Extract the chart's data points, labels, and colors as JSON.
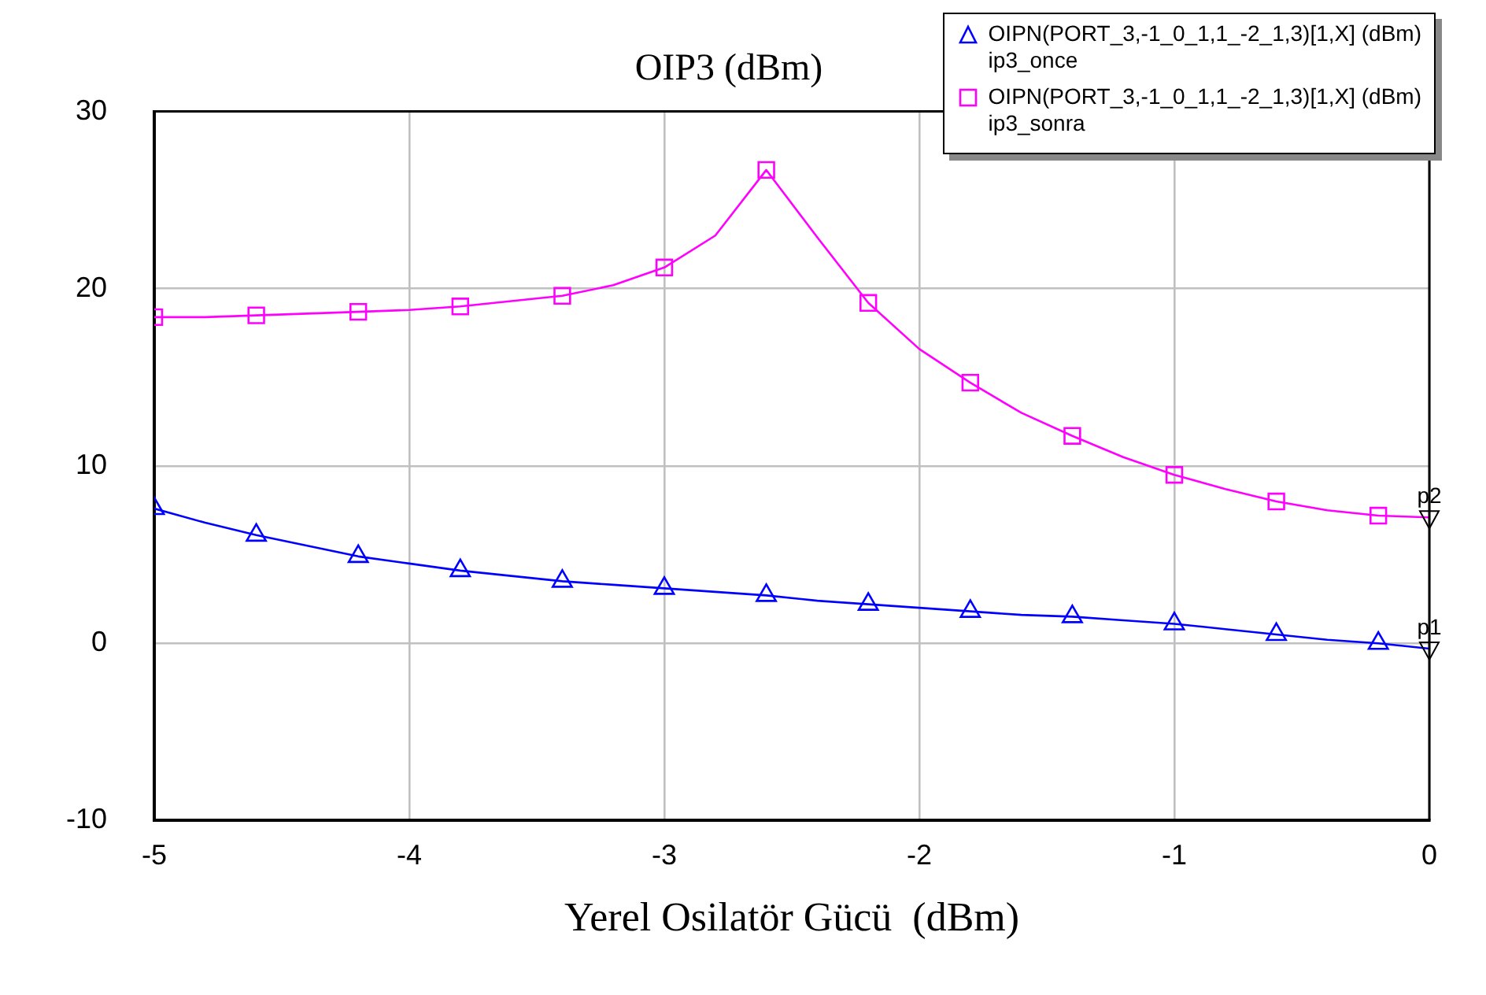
{
  "chart_data": {
    "type": "line",
    "title": "OIP3 (dBm)",
    "xlabel": "Yerel Osilatör Gücü  (dBm)",
    "x": [
      -5,
      -4.8,
      -4.6,
      -4.4,
      -4.2,
      -4,
      -3.8,
      -3.6,
      -3.4,
      -3.2,
      -3,
      -2.8,
      -2.6,
      -2.4,
      -2.2,
      -2,
      -1.8,
      -1.6,
      -1.4,
      -1.2,
      -1,
      -0.8,
      -0.6,
      -0.4,
      -0.2,
      0
    ],
    "series": [
      {
        "name": "OIPN(PORT_3,-1_0_1,1_-2_1,3)[1,X] (dBm)\nip3_once",
        "color": "#0000ff",
        "marker": "triangle",
        "values": [
          7.6,
          6.8,
          6.1,
          5.5,
          4.9,
          4.5,
          4.1,
          3.8,
          3.5,
          3.3,
          3.1,
          2.9,
          2.7,
          2.4,
          2.2,
          2.0,
          1.8,
          1.6,
          1.5,
          1.3,
          1.1,
          0.8,
          0.5,
          0.2,
          0.0,
          -0.3
        ]
      },
      {
        "name": "OIPN(PORT_3,-1_0_1,1_-2_1,3)[1,X] (dBm)\nip3_sonra",
        "color": "#ff00ff",
        "marker": "square",
        "values": [
          18.4,
          18.4,
          18.5,
          18.6,
          18.7,
          18.8,
          19.0,
          19.3,
          19.6,
          20.2,
          21.2,
          23.0,
          26.7,
          22.9,
          19.2,
          16.6,
          14.7,
          13.0,
          11.7,
          10.5,
          9.5,
          8.7,
          8.0,
          7.5,
          7.2,
          7.1
        ]
      }
    ],
    "xlim": [
      -5,
      0
    ],
    "xticks": [
      -5,
      -4,
      -3,
      -2,
      -1,
      0
    ],
    "ylim": [
      -10,
      30
    ],
    "yticks": [
      -10,
      0,
      10,
      20,
      30
    ],
    "grid": true,
    "legend": "top right",
    "line_style": "solid",
    "annotations": [
      {
        "text": "p1",
        "x": 0,
        "y": -0.3
      },
      {
        "text": "p2",
        "x": 0,
        "y": 7.1
      }
    ]
  }
}
